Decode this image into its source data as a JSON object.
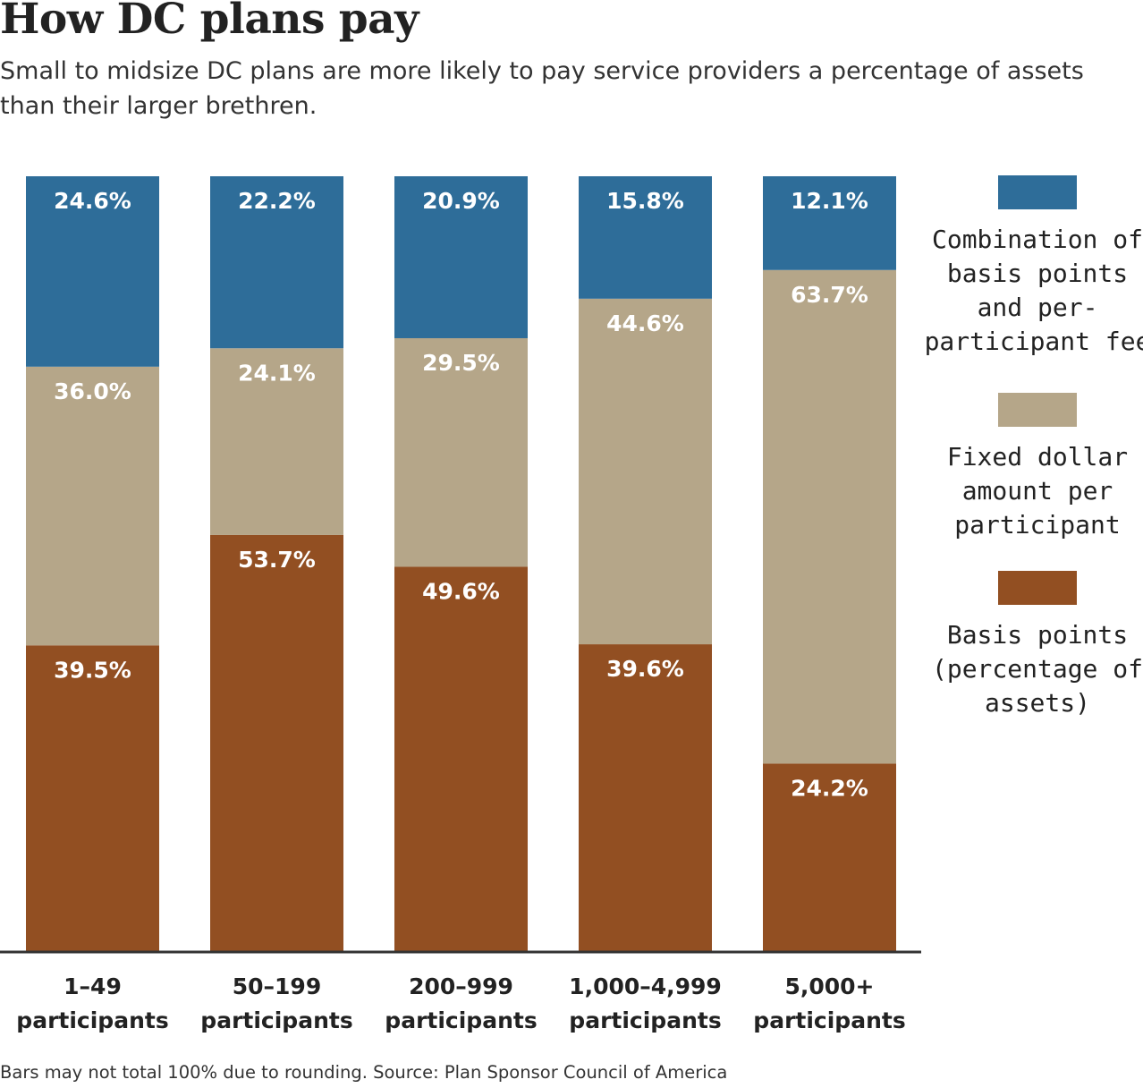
{
  "title": "How DC plans pay",
  "subtitle": "Small to midsize DC plans are more likely to pay service providers a percentage of assets than their larger brethren.",
  "footnote": "Bars may not total 100% due to rounding. Source: Plan Sponsor Council of America",
  "chart_data": {
    "type": "bar",
    "stacked": true,
    "categories": [
      "1–49 participants",
      "50–199 participants",
      "200–999 participants",
      "1,000–4,999 participants",
      "5,000+ participants"
    ],
    "category_lines": [
      [
        "1–49",
        "participants"
      ],
      [
        "50–199",
        "participants"
      ],
      [
        "200–999",
        "participants"
      ],
      [
        "1,000–4,999",
        "participants"
      ],
      [
        "5,000+",
        "participants"
      ]
    ],
    "series": [
      {
        "name": "Basis points (percentage of assets)",
        "legend_lines": [
          "Basis points",
          "(percentage of",
          "assets)"
        ],
        "color": "#924f22",
        "values": [
          39.5,
          53.7,
          49.6,
          39.6,
          24.2
        ],
        "labels": [
          "39.5%",
          "53.7%",
          "49.6%",
          "39.6%",
          "24.2%"
        ]
      },
      {
        "name": "Fixed dollar amount per participant",
        "legend_lines": [
          "Fixed dollar",
          "amount per",
          "participant"
        ],
        "color": "#b5a689",
        "values": [
          36.0,
          24.1,
          29.5,
          44.6,
          63.7
        ],
        "labels": [
          "36.0%",
          "24.1%",
          "29.5%",
          "44.6%",
          "63.7%"
        ]
      },
      {
        "name": "Combination of basis points and per-participant fee",
        "legend_lines": [
          "Combination of",
          "basis points",
          "and per-",
          "participant fee"
        ],
        "color": "#2e6d99",
        "values": [
          24.6,
          22.2,
          20.9,
          15.8,
          12.1
        ],
        "labels": [
          "24.6%",
          "22.2%",
          "20.9%",
          "15.8%",
          "12.1%"
        ]
      }
    ],
    "legend_position": "right",
    "grid": false,
    "axis_color": "#333333"
  }
}
